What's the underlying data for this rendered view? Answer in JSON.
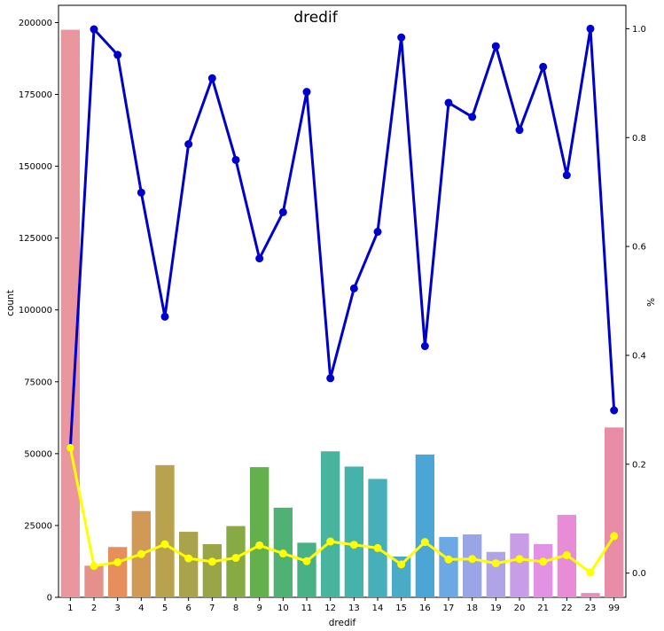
{
  "chart_data": {
    "type": "bar",
    "title": "dredif",
    "xlabel": "dredif",
    "ylabel": "count",
    "y2label": "%",
    "categories": [
      "1",
      "2",
      "3",
      "4",
      "5",
      "6",
      "7",
      "8",
      "9",
      "10",
      "11",
      "12",
      "13",
      "14",
      "15",
      "16",
      "17",
      "18",
      "19",
      "20",
      "21",
      "22",
      "23",
      "99"
    ],
    "ylim": [
      0,
      206000
    ],
    "y2lim": [
      -0.0445,
      1.043
    ],
    "yticks": [
      0,
      25000,
      50000,
      75000,
      100000,
      125000,
      150000,
      175000,
      200000
    ],
    "y2ticks": [
      0.0,
      0.2,
      0.4,
      0.6,
      0.8,
      1.0
    ],
    "grid": false,
    "bar_colors": [
      "#ea969e",
      "#e5908a",
      "#e68f5c",
      "#d09a56",
      "#b9a24e",
      "#a8a34c",
      "#9aa547",
      "#87aa44",
      "#63b04c",
      "#4fb174",
      "#49b186",
      "#48b49d",
      "#45b2ab",
      "#47afba",
      "#4aabc7",
      "#4ba6d6",
      "#6ca9e4",
      "#9aa5e8",
      "#b1a3e8",
      "#c89ce6",
      "#e291e5",
      "#e98cd7",
      "#e98ebf",
      "#e98ca8"
    ],
    "bars": {
      "name": "count",
      "values": [
        197500,
        11000,
        17500,
        30000,
        46000,
        22800,
        18500,
        24800,
        45300,
        31200,
        19000,
        50800,
        45500,
        41200,
        14200,
        49700,
        21000,
        21900,
        15800,
        22200,
        18500,
        28700,
        1500,
        59100
      ]
    },
    "lines": [
      {
        "name": "blue",
        "color": "#0000cc",
        "values": [
          0.23,
          0.999,
          0.952,
          0.699,
          0.471,
          0.788,
          0.909,
          0.759,
          0.578,
          0.663,
          0.884,
          0.358,
          0.523,
          0.627,
          0.984,
          0.417,
          0.864,
          0.838,
          0.968,
          0.814,
          0.93,
          0.731,
          1.0,
          0.299
        ]
      },
      {
        "name": "yellow",
        "color": "#ffff00",
        "values": [
          0.23,
          0.013,
          0.02,
          0.035,
          0.053,
          0.027,
          0.021,
          0.028,
          0.051,
          0.036,
          0.022,
          0.058,
          0.052,
          0.046,
          0.016,
          0.057,
          0.025,
          0.026,
          0.018,
          0.026,
          0.021,
          0.033,
          0.001,
          0.068
        ]
      }
    ]
  }
}
